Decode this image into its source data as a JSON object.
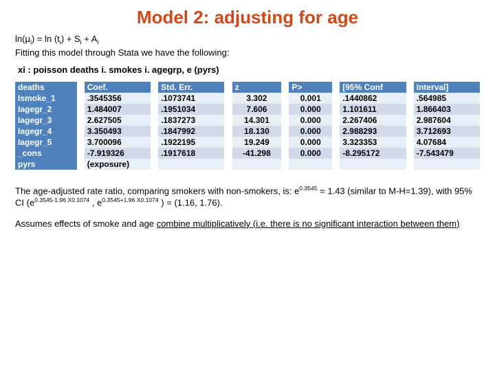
{
  "title": {
    "text": "Model 2: adjusting for age",
    "color": "#d34817",
    "fontsize": 26
  },
  "body_fontsize": 13,
  "formula_html": "ln(μ<span class='sub'>i</span>) = ln (t<span class='sub'>i</span>) +  S<span class='sub'>i</span> + A<span class='sub'>i</span>",
  "fitting_text": "Fitting this model through Stata we have the following:",
  "xi_line": "xi : poisson deaths i. smokes i. agegrp, e (pyrs)",
  "table": {
    "header_bg": "#4f81bd",
    "header_fg": "#ffffff",
    "row_even_bg": "#e9eff7",
    "row_odd_bg": "#d0dae8",
    "cell_fontsize": 12,
    "columns": [
      "deaths",
      "Coef.",
      "Std. Err.",
      "z",
      "P>",
      "[95% Conf",
      "Interval]"
    ],
    "rows": [
      [
        "Ismoke_1",
        ".3545356",
        ".1073741",
        "3.302",
        "0.001",
        ".1440862",
        ".564985"
      ],
      [
        "Iagegr_2",
        "1.484007",
        ".1951034",
        "7.606",
        "0.000",
        "1.101611",
        "1.866403"
      ],
      [
        "Iagegr_3",
        "2.627505",
        ".1837273",
        "14.301",
        "0.000",
        "2.267406",
        "2.987604"
      ],
      [
        "Iagegr_4",
        "3.350493",
        ".1847992",
        "18.130",
        "0.000",
        "2.988293",
        "3.712693"
      ],
      [
        "Iagegr_5",
        "3.700096",
        ".1922195",
        "19.249",
        "0.000",
        "3.323353",
        "4.07684"
      ],
      [
        "_cons",
        "-7.919326",
        ".1917618",
        "-41.298",
        "0.000",
        "-8.295172",
        "-7.543479"
      ],
      [
        "pyrs",
        "(exposure)",
        "",
        "",
        "",
        "",
        ""
      ]
    ]
  },
  "commentary_html": "The age-adjusted rate ratio, comparing smokers with non-smokers, is: e<span class='sup'>0.3545</span> = 1.43  (similar to M-H=1.39), with 95% CI (e<span class='sup'>0.3545-1.96 X0.1074</span> , e<span class='sup'>0.3545+1.96 X0.1074</span> ) = (1.16, 1.76).",
  "assume_prefix": "Assumes effects of smoke and age ",
  "assume_underline": "combine multiplicatively (i.e. there is no significant interaction between them)"
}
